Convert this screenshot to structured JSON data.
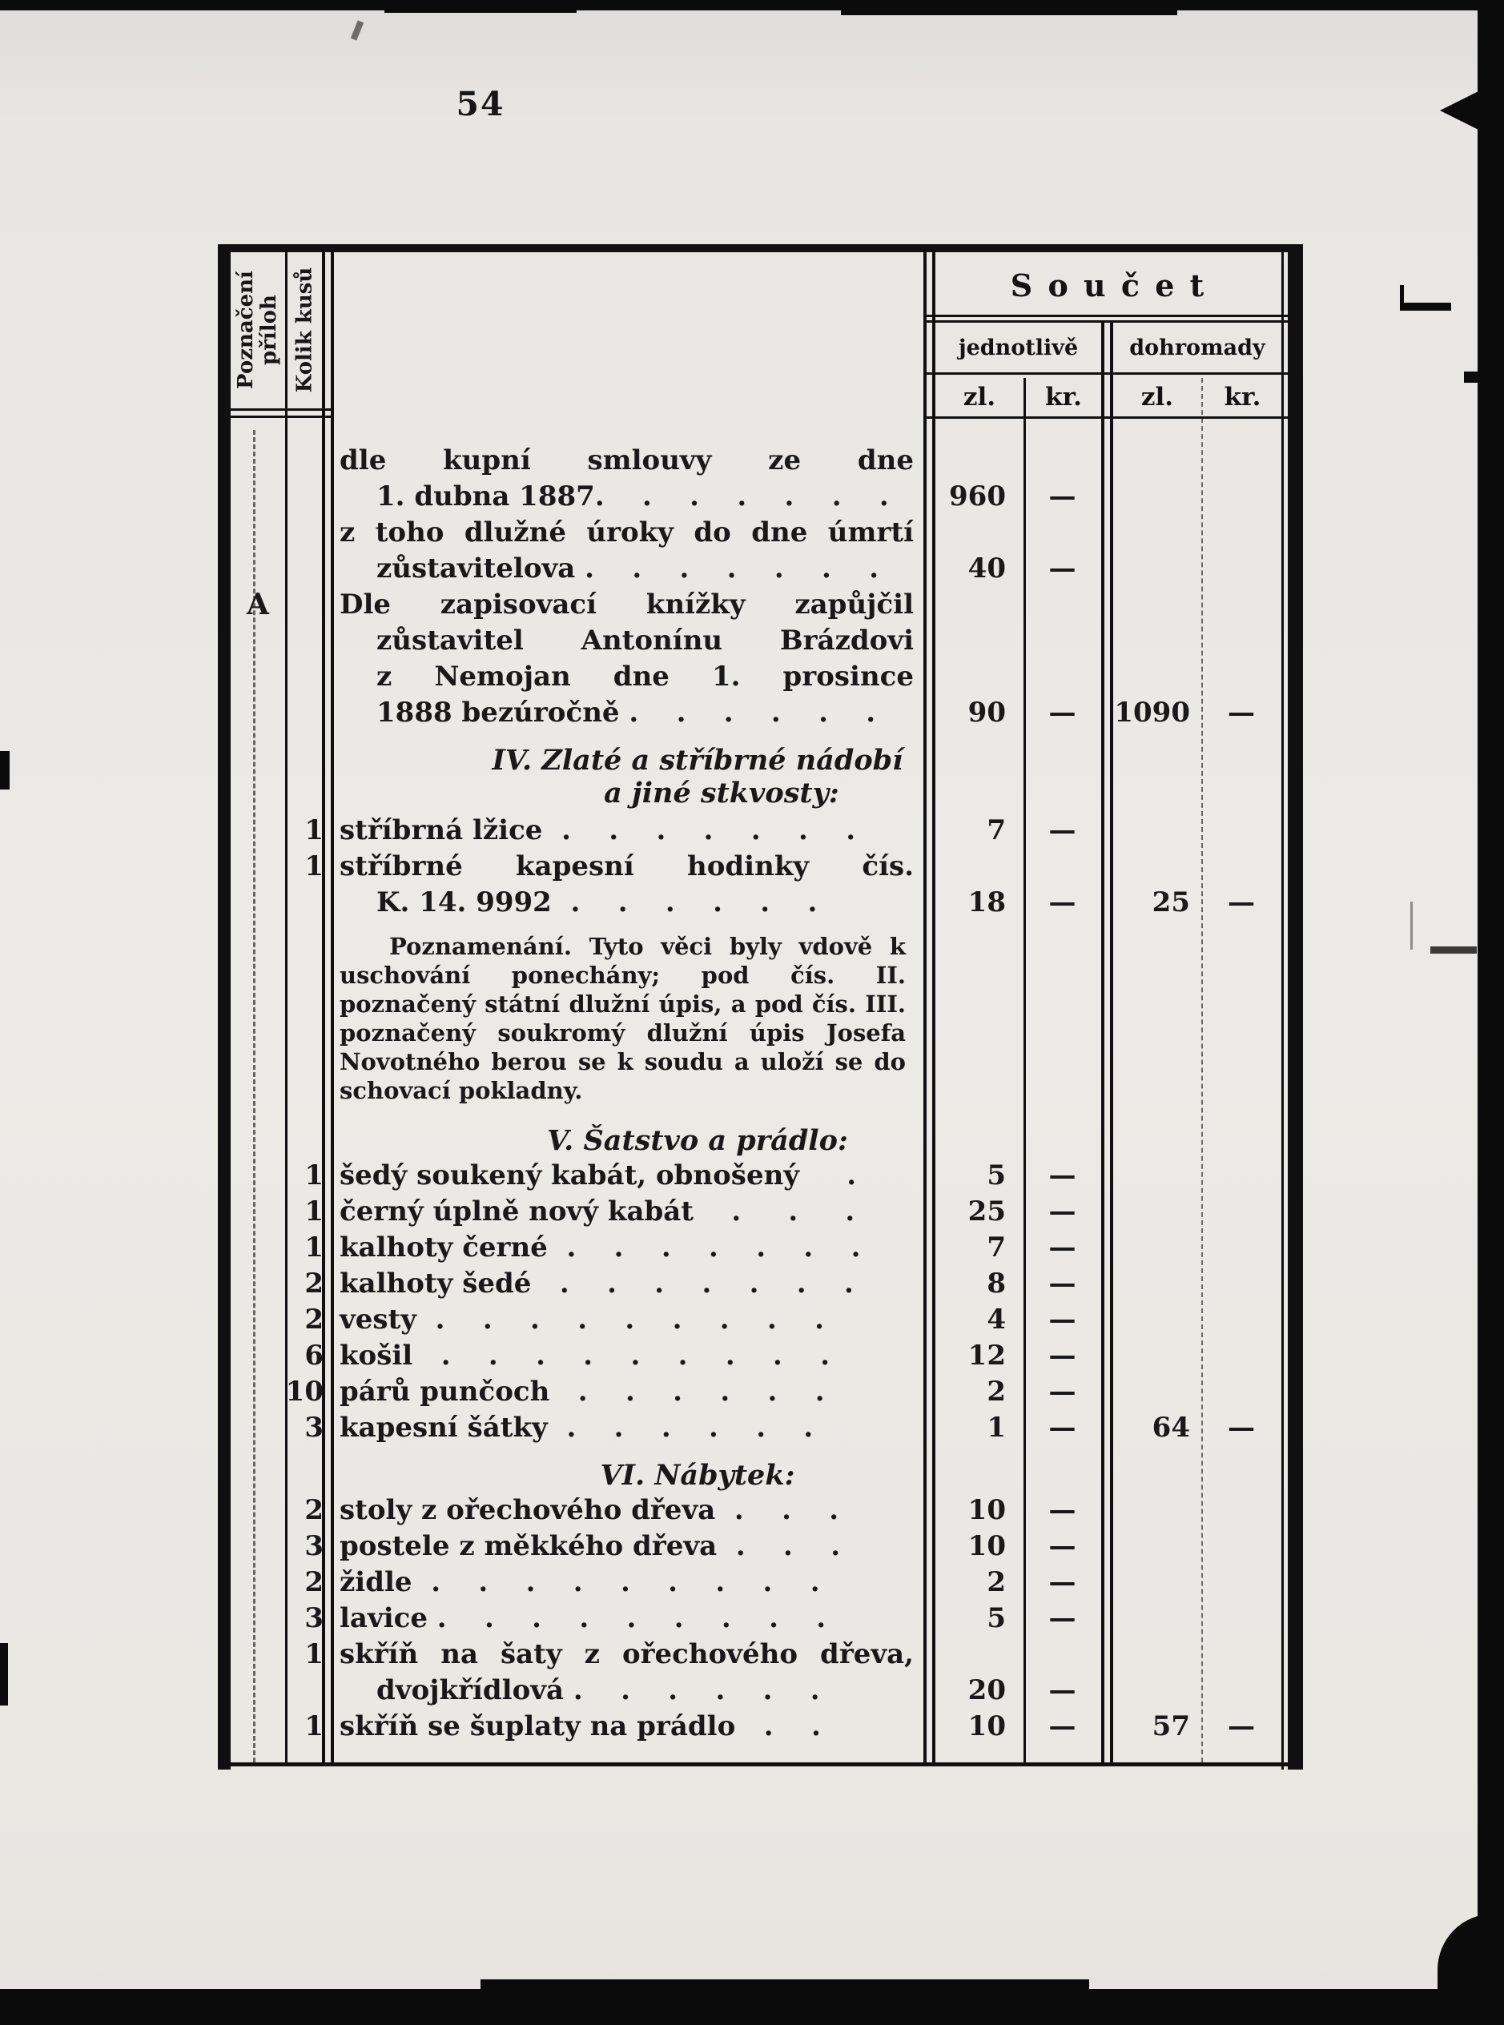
{
  "page": {
    "number": "54"
  },
  "table": {
    "left_headers": {
      "col1": "Poznačení\npříloh",
      "col2": "Kolik kusů"
    },
    "sum": {
      "title": "S o u č e t",
      "group1": "jednotlivě",
      "group2": "dohromady",
      "unit_zl": "zl.",
      "unit_kr": "kr."
    },
    "rows": [
      {
        "kind": "spread",
        "text": "dle kupní smlouvy ze dne"
      },
      {
        "kind": "indent",
        "text": "1. dubna 1887.    .    .    .    .    .    .",
        "zl1": "960",
        "kr1": "—"
      },
      {
        "kind": "spread",
        "text": "z toho dlužné úroky do dne úmrtí"
      },
      {
        "kind": "indent",
        "text": "zůstavitelova .    .    .    .    .    .    .",
        "zl1": "40",
        "kr1": "—"
      },
      {
        "kind": "spread",
        "pril": "A",
        "text": "Dle zapisovací knížky zapůjčil"
      },
      {
        "kind": "indent-spread",
        "text": "zůstavitel Antonínu Brázdovi"
      },
      {
        "kind": "indent-spread",
        "text": "z Nemojan dne 1. prosince"
      },
      {
        "kind": "indent",
        "text": "1888 bezúročně .    .    .    .    .    .",
        "zl1": "90",
        "kr1": "—",
        "zl2": "1090",
        "kr2": "—"
      },
      {
        "kind": "heading",
        "text": "IV. Zlaté a stříbrné nádobí"
      },
      {
        "kind": "heading2",
        "text": "a jiné stkvosty:"
      },
      {
        "kind": "item",
        "kolik": "1",
        "text": "stříbrná lžice  .    .    .    .    .    .    .",
        "zl1": "7",
        "kr1": "—"
      },
      {
        "kind": "spread",
        "kolik": "1",
        "text": "stříbrné kapesní hodinky čís."
      },
      {
        "kind": "indent",
        "text": "K. 14. 9992  .    .    .    .    .    .",
        "zl1": "18",
        "kr1": "—",
        "zl2": "25",
        "kr2": "—"
      },
      {
        "kind": "note",
        "text": "Poznamenání. Tyto věci byly vdově k uschování ponechány; pod čís. II. poznačený státní dlužní úpis, a pod čís. III. poznačený soukromý dlužní úpis Josefa Novotného berou se k soudu a uloží se do schovací pokladny."
      },
      {
        "kind": "heading",
        "text": "V. Šatstvo a prádlo:"
      },
      {
        "kind": "item",
        "kolik": "1",
        "text": "šedý soukený kabát, obnošený     .",
        "zl1": "5",
        "kr1": "—"
      },
      {
        "kind": "item",
        "kolik": "1",
        "text": "černý úplně nový kabát    .     .     .",
        "zl1": "25",
        "kr1": "—"
      },
      {
        "kind": "item",
        "kolik": "1",
        "text": "kalhoty černé  .    .    .    .    .    .    .",
        "zl1": "7",
        "kr1": "—"
      },
      {
        "kind": "item",
        "kolik": "2",
        "text": "kalhoty šedé   .    .    .    .    .    .    .",
        "zl1": "8",
        "kr1": "—"
      },
      {
        "kind": "item",
        "kolik": "2",
        "text": "vesty  .    .    .    .    .    .    .    .    .",
        "zl1": "4",
        "kr1": "—"
      },
      {
        "kind": "item",
        "kolik": "6",
        "text": "košil   .    .    .    .    .    .    .    .    .",
        "zl1": "12",
        "kr1": "—"
      },
      {
        "kind": "item",
        "kolik": "10",
        "text": "párů punčoch   .    .    .    .    .    .",
        "zl1": "2",
        "kr1": "—"
      },
      {
        "kind": "item",
        "kolik": "3",
        "text": "kapesní šátky  .    .    .    .    .    .",
        "zl1": "1",
        "kr1": "—",
        "zl2": "64",
        "kr2": "—"
      },
      {
        "kind": "heading",
        "text": "VI. Nábytek:"
      },
      {
        "kind": "item",
        "kolik": "2",
        "text": "stoly z ořechového dřeva  .    .    .",
        "zl1": "10",
        "kr1": "—"
      },
      {
        "kind": "item",
        "kolik": "3",
        "text": "postele z měkkého dřeva  .    .    .",
        "zl1": "10",
        "kr1": "—"
      },
      {
        "kind": "item",
        "kolik": "2",
        "text": "židle  .    .    .    .    .    .    .    .    .",
        "zl1": "2",
        "kr1": "—"
      },
      {
        "kind": "item",
        "kolik": "3",
        "text": "lavice .    .    .    .    .    .    .    .    .",
        "zl1": "5",
        "kr1": "—"
      },
      {
        "kind": "spread",
        "kolik": "1",
        "text": "skříň na šaty z ořechového dřeva,"
      },
      {
        "kind": "indent",
        "text": "dvojkřídlová .    .    .    .    .    .",
        "zl1": "20",
        "kr1": "—"
      },
      {
        "kind": "item",
        "kolik": "1",
        "text": "skříň se šuplaty na prádlo   .    .",
        "zl1": "10",
        "kr1": "—",
        "zl2": "57",
        "kr2": "—"
      }
    ]
  }
}
